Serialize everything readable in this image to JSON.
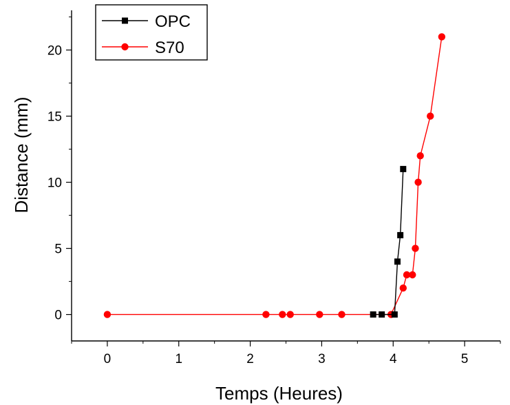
{
  "chart_data": {
    "type": "line",
    "title": "",
    "xlabel": "Temps (Heures)",
    "ylabel": "Distance (mm)",
    "xlim": [
      -0.5,
      5.5
    ],
    "ylim": [
      -2,
      23
    ],
    "xticks": [
      0,
      1,
      2,
      3,
      4,
      5
    ],
    "xtick_labels": [
      "0",
      "1",
      "2",
      "3",
      "4",
      "5"
    ],
    "yticks": [
      0,
      5,
      10,
      15,
      20
    ],
    "ytick_labels": [
      "0",
      "5",
      "10",
      "15",
      "20"
    ],
    "grid": false,
    "legend_position": "top-left",
    "series": [
      {
        "name": "OPC",
        "color": "#000000",
        "marker": "square",
        "x": [
          3.72,
          3.84,
          4.02,
          4.06,
          4.1,
          4.14
        ],
        "y": [
          0,
          0,
          0,
          4,
          6,
          11
        ]
      },
      {
        "name": "S70",
        "color": "#ff0000",
        "marker": "circle",
        "x": [
          0,
          2.22,
          2.45,
          2.56,
          2.97,
          3.28,
          3.97,
          4.14,
          4.19,
          4.27,
          4.31,
          4.35,
          4.38,
          4.52,
          4.68
        ],
        "y": [
          0,
          0,
          0,
          0,
          0,
          0,
          0,
          2,
          3,
          3,
          5,
          10,
          12,
          15,
          21
        ]
      }
    ]
  }
}
